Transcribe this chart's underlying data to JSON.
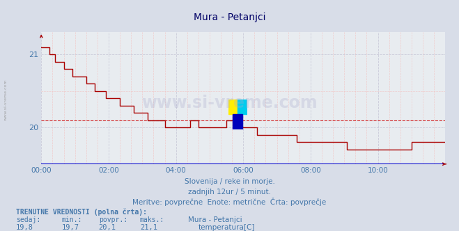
{
  "title": "Mura - Petanjci",
  "bg_color": "#d8dde8",
  "plot_bg_color": "#e8ecf0",
  "line_color": "#aa0000",
  "avg_line_color": "#cc0000",
  "avg_value": 20.1,
  "y_min": 19.5,
  "y_max": 21.3,
  "y_ticks": [
    20,
    21
  ],
  "x_tick_positions": [
    0,
    24,
    48,
    72,
    96,
    120
  ],
  "x_tick_labels": [
    "00:00",
    "02:00",
    "04:00",
    "06:00",
    "08:00",
    "10:00"
  ],
  "grid_color_major": "#c8c8d8",
  "grid_color_minor": "#f0c8c8",
  "axis_color": "#0000cc",
  "watermark_text": "www.si-vreme.com",
  "sidebar_text": "www.si-vreme.com",
  "subtitle1": "Slovenija / reke in morje.",
  "subtitle2": "zadnjih 12ur / 5 minut.",
  "subtitle3": "Meritve: povprečne  Enote: metrične  Črta: povprečje",
  "footer_label1": "TRENUTNE VREDNOSTI (polna črta):",
  "footer_row_labels": [
    "sedaj:",
    "min.:",
    "povpr.:",
    "maks.:"
  ],
  "footer_row_values": [
    "19,8",
    "19,7",
    "20,1",
    "21,1"
  ],
  "footer_series": "Mura - Petanjci",
  "footer_param": "temperatura[C]",
  "footer_param_color": "#cc0000",
  "text_color": "#4477aa",
  "title_color": "#000066",
  "temperature": [
    21.1,
    21.1,
    21.1,
    21.0,
    21.0,
    20.9,
    20.9,
    20.9,
    20.8,
    20.8,
    20.8,
    20.7,
    20.7,
    20.7,
    20.7,
    20.7,
    20.6,
    20.6,
    20.6,
    20.5,
    20.5,
    20.5,
    20.5,
    20.4,
    20.4,
    20.4,
    20.4,
    20.4,
    20.3,
    20.3,
    20.3,
    20.3,
    20.3,
    20.2,
    20.2,
    20.2,
    20.2,
    20.2,
    20.1,
    20.1,
    20.1,
    20.1,
    20.1,
    20.1,
    20.0,
    20.0,
    20.0,
    20.0,
    20.0,
    20.0,
    20.0,
    20.0,
    20.0,
    20.1,
    20.1,
    20.1,
    20.0,
    20.0,
    20.0,
    20.0,
    20.0,
    20.0,
    20.0,
    20.0,
    20.0,
    20.0,
    20.1,
    20.1,
    20.1,
    20.1,
    20.0,
    20.0,
    20.0,
    20.0,
    20.0,
    20.0,
    20.0,
    19.9,
    19.9,
    19.9,
    19.9,
    19.9,
    19.9,
    19.9,
    19.9,
    19.9,
    19.9,
    19.9,
    19.9,
    19.9,
    19.9,
    19.8,
    19.8,
    19.8,
    19.8,
    19.8,
    19.8,
    19.8,
    19.8,
    19.8,
    19.8,
    19.8,
    19.8,
    19.8,
    19.8,
    19.8,
    19.8,
    19.8,
    19.8,
    19.7,
    19.7,
    19.7,
    19.7,
    19.7,
    19.7,
    19.7,
    19.7,
    19.7,
    19.7,
    19.7,
    19.7,
    19.7,
    19.7,
    19.7,
    19.7,
    19.7,
    19.7,
    19.7,
    19.7,
    19.7,
    19.7,
    19.7,
    19.8,
    19.8,
    19.8,
    19.8,
    19.8,
    19.8,
    19.8,
    19.8,
    19.8,
    19.8,
    19.8,
    19.8,
    19.8
  ]
}
